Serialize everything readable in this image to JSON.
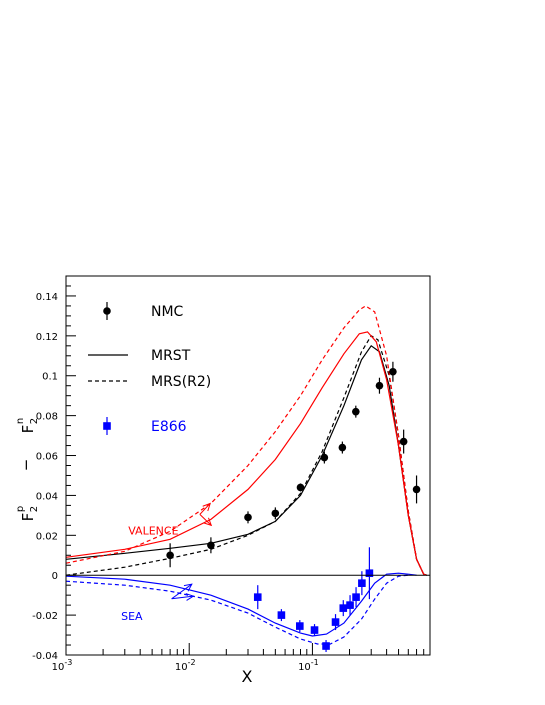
{
  "chart_data": {
    "type": "scatter",
    "title": "",
    "xlabel": "X",
    "ylabel": {
      "main_left": "F",
      "sub_left": "2",
      "sup_left": "p",
      "minus": "−",
      "main_right": "F",
      "sub_right": "2",
      "sup_right": "n"
    },
    "xscale": "log",
    "xlim": [
      0.001,
      0.9
    ],
    "ylim": [
      -0.04,
      0.15
    ],
    "grid": false,
    "legend_position": "top-left",
    "x_tick_labels": [
      {
        "x": 0.001,
        "base": "10",
        "exp": "-3"
      },
      {
        "x": 0.01,
        "base": "10",
        "exp": "-2"
      },
      {
        "x": 0.1,
        "base": "10",
        "exp": "-1"
      }
    ],
    "y_ticks": [
      {
        "y": 0.14,
        "label": "0.14"
      },
      {
        "y": 0.12,
        "label": "0.12"
      },
      {
        "y": 0.1,
        "label": "0.1"
      },
      {
        "y": 0.08,
        "label": "0.08"
      },
      {
        "y": 0.06,
        "label": "0.06"
      },
      {
        "y": 0.04,
        "label": "0.04"
      },
      {
        "y": 0.02,
        "label": "0.02"
      },
      {
        "y": 0.0,
        "label": "0"
      },
      {
        "y": -0.02,
        "label": "-0.02"
      },
      {
        "y": -0.04,
        "label": "-0.04"
      }
    ],
    "legend": [
      {
        "label": "NMC",
        "kind": "circle",
        "color": "#000000"
      },
      {
        "label": "MRST",
        "kind": "solid",
        "color": "#000000"
      },
      {
        "label": "MRS(R2)",
        "kind": "dashed",
        "color": "#000000"
      },
      {
        "label": "E866",
        "kind": "square",
        "color": "#0000ff"
      }
    ],
    "annotations": [
      {
        "text": "VALENCE",
        "color": "#ff0000",
        "tx": 0.0032,
        "ty": 0.0205,
        "arrows": [
          [
            0.0148,
            0.036
          ],
          [
            0.0151,
            0.025
          ]
        ],
        "base": [
          0.0122,
          0.0305
        ]
      },
      {
        "text": "SEA",
        "color": "#0000ff",
        "tx": 0.0028,
        "ty": -0.0225,
        "arrows": [
          [
            0.0105,
            -0.0045
          ],
          [
            0.0108,
            -0.0105
          ]
        ],
        "base": [
          0.0072,
          -0.0118
        ]
      }
    ],
    "series": [
      {
        "name": "NMC",
        "kind": "points",
        "marker": "circle",
        "color": "#000000",
        "points": [
          {
            "x": 0.007,
            "y": 0.01,
            "err": 0.006
          },
          {
            "x": 0.015,
            "y": 0.015,
            "err": 0.004
          },
          {
            "x": 0.03,
            "y": 0.029,
            "err": 0.003
          },
          {
            "x": 0.05,
            "y": 0.031,
            "err": 0.003
          },
          {
            "x": 0.08,
            "y": 0.044,
            "err": 0.002
          },
          {
            "x": 0.125,
            "y": 0.059,
            "err": 0.003
          },
          {
            "x": 0.175,
            "y": 0.064,
            "err": 0.003
          },
          {
            "x": 0.225,
            "y": 0.082,
            "err": 0.003
          },
          {
            "x": 0.275,
            "y": 0.0,
            "err": 0.0,
            "hidden": true
          },
          {
            "x": 0.35,
            "y": 0.095,
            "err": 0.004
          },
          {
            "x": 0.45,
            "y": 0.102,
            "err": 0.005
          },
          {
            "x": 0.55,
            "y": 0.067,
            "err": 0.006
          },
          {
            "x": 0.7,
            "y": 0.043,
            "err": 0.007
          }
        ]
      },
      {
        "name": "E866",
        "kind": "points",
        "marker": "square",
        "color": "#0000ff",
        "points": [
          {
            "x": 0.036,
            "y": -0.011,
            "err": 0.006
          },
          {
            "x": 0.056,
            "y": -0.02,
            "err": 0.003
          },
          {
            "x": 0.079,
            "y": -0.0255,
            "err": 0.003
          },
          {
            "x": 0.104,
            "y": -0.0275,
            "err": 0.003
          },
          {
            "x": 0.129,
            "y": -0.0355,
            "err": 0.003
          },
          {
            "x": 0.154,
            "y": -0.0235,
            "err": 0.004
          },
          {
            "x": 0.178,
            "y": -0.0165,
            "err": 0.004
          },
          {
            "x": 0.202,
            "y": -0.015,
            "err": 0.005
          },
          {
            "x": 0.226,
            "y": -0.011,
            "err": 0.005
          },
          {
            "x": 0.252,
            "y": -0.004,
            "err": 0.006
          },
          {
            "x": 0.29,
            "y": 0.001,
            "err": 0.013
          }
        ]
      },
      {
        "name": "MRST",
        "kind": "line",
        "style": "solid",
        "color": "#000000",
        "points": [
          [
            0.001,
            0.008
          ],
          [
            0.003,
            0.011
          ],
          [
            0.007,
            0.0135
          ],
          [
            0.015,
            0.016
          ],
          [
            0.03,
            0.0205
          ],
          [
            0.05,
            0.027
          ],
          [
            0.08,
            0.04
          ],
          [
            0.12,
            0.06
          ],
          [
            0.18,
            0.085
          ],
          [
            0.25,
            0.108
          ],
          [
            0.3,
            0.115
          ],
          [
            0.35,
            0.112
          ],
          [
            0.42,
            0.095
          ],
          [
            0.5,
            0.065
          ],
          [
            0.6,
            0.03
          ],
          [
            0.7,
            0.008
          ],
          [
            0.8,
            0.0005
          ],
          [
            0.85,
            0.0
          ]
        ]
      },
      {
        "name": "MRS(R2)",
        "kind": "line",
        "style": "dashed",
        "color": "#000000",
        "points": [
          [
            0.001,
            0.0
          ],
          [
            0.003,
            0.004
          ],
          [
            0.007,
            0.0085
          ],
          [
            0.015,
            0.013
          ],
          [
            0.03,
            0.02
          ],
          [
            0.05,
            0.027
          ],
          [
            0.08,
            0.041
          ],
          [
            0.12,
            0.062
          ],
          [
            0.18,
            0.089
          ],
          [
            0.25,
            0.112
          ],
          [
            0.3,
            0.12
          ],
          [
            0.34,
            0.118
          ],
          [
            0.42,
            0.1
          ],
          [
            0.5,
            0.07
          ],
          [
            0.6,
            0.032
          ],
          [
            0.7,
            0.008
          ],
          [
            0.8,
            0.0005
          ],
          [
            0.85,
            0.0
          ]
        ]
      },
      {
        "name": "VALENCE MRST",
        "kind": "line",
        "style": "solid",
        "color": "#ff0000",
        "points": [
          [
            0.001,
            0.009
          ],
          [
            0.003,
            0.013
          ],
          [
            0.007,
            0.018
          ],
          [
            0.015,
            0.028
          ],
          [
            0.03,
            0.043
          ],
          [
            0.05,
            0.058
          ],
          [
            0.08,
            0.076
          ],
          [
            0.12,
            0.094
          ],
          [
            0.18,
            0.111
          ],
          [
            0.24,
            0.121
          ],
          [
            0.28,
            0.122
          ],
          [
            0.33,
            0.117
          ],
          [
            0.4,
            0.098
          ],
          [
            0.5,
            0.065
          ],
          [
            0.6,
            0.03
          ],
          [
            0.7,
            0.008
          ],
          [
            0.8,
            0.0005
          ],
          [
            0.85,
            0.0
          ]
        ]
      },
      {
        "name": "VALENCE MRS(R2)",
        "kind": "line",
        "style": "dashed",
        "color": "#ff0000",
        "points": [
          [
            0.001,
            0.006
          ],
          [
            0.003,
            0.012
          ],
          [
            0.007,
            0.022
          ],
          [
            0.015,
            0.036
          ],
          [
            0.03,
            0.055
          ],
          [
            0.05,
            0.072
          ],
          [
            0.08,
            0.09
          ],
          [
            0.12,
            0.108
          ],
          [
            0.18,
            0.124
          ],
          [
            0.24,
            0.133
          ],
          [
            0.27,
            0.135
          ],
          [
            0.32,
            0.132
          ],
          [
            0.4,
            0.11
          ],
          [
            0.5,
            0.07
          ],
          [
            0.6,
            0.032
          ],
          [
            0.7,
            0.008
          ],
          [
            0.8,
            0.0005
          ],
          [
            0.85,
            0.0
          ]
        ]
      },
      {
        "name": "SEA MRST",
        "kind": "line",
        "style": "solid",
        "color": "#0000ff",
        "points": [
          [
            0.001,
            -0.0005
          ],
          [
            0.003,
            -0.002
          ],
          [
            0.007,
            -0.005
          ],
          [
            0.015,
            -0.01
          ],
          [
            0.03,
            -0.017
          ],
          [
            0.05,
            -0.024
          ],
          [
            0.08,
            -0.029
          ],
          [
            0.1,
            -0.0305
          ],
          [
            0.13,
            -0.0295
          ],
          [
            0.18,
            -0.024
          ],
          [
            0.25,
            -0.013
          ],
          [
            0.32,
            -0.004
          ],
          [
            0.4,
            0.0005
          ],
          [
            0.5,
            0.001
          ],
          [
            0.6,
            0.0005
          ],
          [
            0.7,
            0.0
          ]
        ]
      },
      {
        "name": "SEA MRS(R2)",
        "kind": "line",
        "style": "dashed",
        "color": "#0000ff",
        "points": [
          [
            0.001,
            -0.003
          ],
          [
            0.003,
            -0.005
          ],
          [
            0.007,
            -0.008
          ],
          [
            0.015,
            -0.0125
          ],
          [
            0.03,
            -0.019
          ],
          [
            0.05,
            -0.026
          ],
          [
            0.08,
            -0.032
          ],
          [
            0.11,
            -0.0345
          ],
          [
            0.14,
            -0.0345
          ],
          [
            0.18,
            -0.031
          ],
          [
            0.25,
            -0.022
          ],
          [
            0.32,
            -0.012
          ],
          [
            0.4,
            -0.004
          ],
          [
            0.5,
            -0.0005
          ],
          [
            0.6,
            0.0
          ]
        ]
      }
    ]
  }
}
